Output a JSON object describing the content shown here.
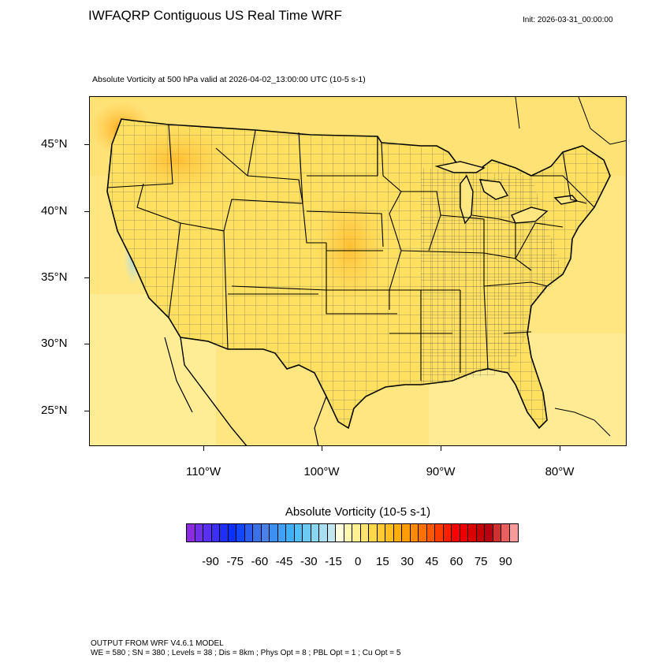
{
  "header": {
    "title": "IWFAQRP Contiguous US Real Time WRF",
    "init": "Init: 2026-03-31_00:00:00",
    "subtitle": "Absolute Vorticity at 500 hPa valid at 2026-04-02_13:00:00 UTC   (10-5 s-1)"
  },
  "map": {
    "lat_labels": [
      "45°N",
      "40°N",
      "35°N",
      "30°N",
      "25°N"
    ],
    "lon_labels": [
      "110°W",
      "100°W",
      "90°W",
      "80°W"
    ]
  },
  "colorbar": {
    "title": "Absolute Vorticity  (10-5 s-1)",
    "labels": [
      "-90",
      "-75",
      "-60",
      "-45",
      "-30",
      "-15",
      "0",
      "15",
      "30",
      "45",
      "60",
      "75",
      "90"
    ],
    "colors": [
      "#8a2be2",
      "#6f2ee8",
      "#5a30f0",
      "#3d2ff5",
      "#1f2ff8",
      "#0a30ff",
      "#1446ff",
      "#2a5cf0",
      "#3a70e8",
      "#4a80e8",
      "#3d8ff0",
      "#3fa0f5",
      "#3cb0f8",
      "#50bff8",
      "#6dcaf5",
      "#8ad5f2",
      "#a8def0",
      "#c4e6ee",
      "#ffffe0",
      "#fff8b0",
      "#fff090",
      "#ffe570",
      "#ffd84c",
      "#ffcb30",
      "#ffbe1c",
      "#ffae10",
      "#ff9c08",
      "#ff8a04",
      "#ff7000",
      "#ff5800",
      "#ff3c00",
      "#ff1e00",
      "#ff0000",
      "#ee0000",
      "#d80000",
      "#c40000",
      "#b80010",
      "#d03030",
      "#e86060",
      "#f89a9a"
    ]
  },
  "footer": {
    "line1": "OUTPUT FROM WRF V4.6.1 MODEL",
    "line2": "WE = 580 ; SN = 380 ; Levels = 38 ; Dis = 8km ; Phys Opt = 8 ; PBL Opt = 1 ; Cu Opt = 5"
  }
}
